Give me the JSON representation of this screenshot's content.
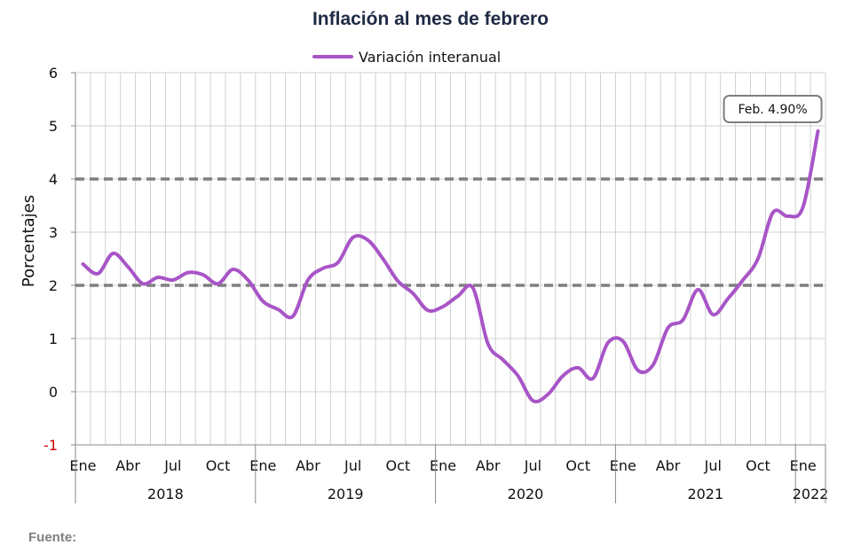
{
  "chart_data": {
    "type": "line",
    "title": "Inflación al mes de febrero",
    "xlabel": "",
    "ylabel": "Porcentajes",
    "ylim": [
      -1,
      6
    ],
    "yticks": [
      "-1",
      "0",
      "1",
      "2",
      "3",
      "4",
      "5",
      "6"
    ],
    "negative_tick_color": "#cc0000",
    "month_labels": [
      "Ene",
      "Abr",
      "Jul",
      "Oct"
    ],
    "years": [
      "2018",
      "2019",
      "2020",
      "2021",
      "2022"
    ],
    "reference_lines": [
      2,
      4
    ],
    "annotation": "Feb. 4.90%",
    "grid": true,
    "legend_position": "top-center",
    "series": [
      {
        "name": "Variación interanual",
        "color": "#a855c7",
        "x": [
          "2018-01",
          "2018-02",
          "2018-03",
          "2018-04",
          "2018-05",
          "2018-06",
          "2018-07",
          "2018-08",
          "2018-09",
          "2018-10",
          "2018-11",
          "2018-12",
          "2019-01",
          "2019-02",
          "2019-03",
          "2019-04",
          "2019-05",
          "2019-06",
          "2019-07",
          "2019-08",
          "2019-09",
          "2019-10",
          "2019-11",
          "2019-12",
          "2020-01",
          "2020-02",
          "2020-03",
          "2020-04",
          "2020-05",
          "2020-06",
          "2020-07",
          "2020-08",
          "2020-09",
          "2020-10",
          "2020-11",
          "2020-12",
          "2021-01",
          "2021-02",
          "2021-03",
          "2021-04",
          "2021-05",
          "2021-06",
          "2021-07",
          "2021-08",
          "2021-09",
          "2021-10",
          "2021-11",
          "2021-12",
          "2022-01",
          "2022-02"
        ],
        "values": [
          2.4,
          2.22,
          2.6,
          2.35,
          2.03,
          2.15,
          2.1,
          2.24,
          2.2,
          2.03,
          2.3,
          2.1,
          1.7,
          1.55,
          1.42,
          2.1,
          2.32,
          2.43,
          2.9,
          2.85,
          2.5,
          2.08,
          1.85,
          1.53,
          1.6,
          1.8,
          1.95,
          0.9,
          0.6,
          0.3,
          -0.17,
          -0.05,
          0.3,
          0.45,
          0.25,
          0.92,
          0.95,
          0.4,
          0.5,
          1.2,
          1.35,
          1.92,
          1.45,
          1.75,
          2.1,
          2.5,
          3.37,
          3.3,
          3.47,
          4.9
        ]
      }
    ]
  }
}
